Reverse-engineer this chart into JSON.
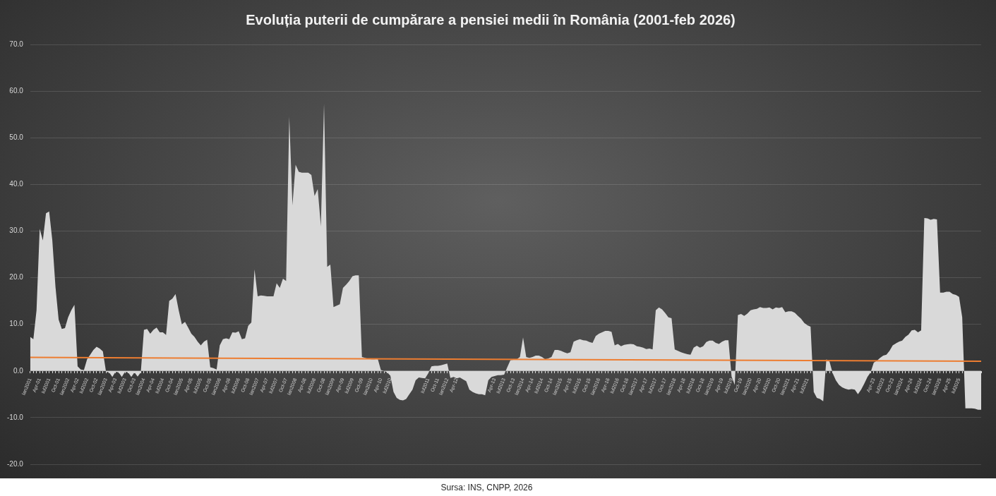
{
  "chart_data": {
    "type": "area",
    "title": "Evoluția puterii de cumpărare a pensiei medii în România (2001-feb 2026)",
    "annotations": [
      "Sursa: INS, CNPP, 2026"
    ],
    "x": [
      "2001-01",
      "2001-02",
      "2001-03",
      "2001-04",
      "2001-05",
      "2001-06",
      "2001-07",
      "2001-08",
      "2001-09",
      "2001-10",
      "2001-11",
      "2001-12",
      "2002-01",
      "2002-02",
      "2002-03",
      "2002-04",
      "2002-05",
      "2002-06",
      "2002-07",
      "2002-08",
      "2002-09",
      "2002-10",
      "2002-11",
      "2002-12",
      "2003-01",
      "2003-02",
      "2003-03",
      "2003-04",
      "2003-05",
      "2003-06",
      "2003-07",
      "2003-08",
      "2003-09",
      "2003-10",
      "2003-11",
      "2003-12",
      "2004-01",
      "2004-02",
      "2004-03",
      "2004-04",
      "2004-05",
      "2004-06",
      "2004-07",
      "2004-08",
      "2004-09",
      "2004-10",
      "2004-11",
      "2004-12",
      "2005-01",
      "2005-02",
      "2005-03",
      "2005-04",
      "2005-05",
      "2005-06",
      "2005-07",
      "2005-08",
      "2005-09",
      "2005-10",
      "2005-11",
      "2005-12",
      "2006-01",
      "2006-02",
      "2006-03",
      "2006-04",
      "2006-05",
      "2006-06",
      "2006-07",
      "2006-08",
      "2006-09",
      "2006-10",
      "2006-11",
      "2006-12",
      "2007-01",
      "2007-02",
      "2007-03",
      "2007-04",
      "2007-05",
      "2007-06",
      "2007-07",
      "2007-08",
      "2007-09",
      "2007-10",
      "2007-11",
      "2007-12",
      "2008-01",
      "2008-02",
      "2008-03",
      "2008-04",
      "2008-05",
      "2008-06",
      "2008-07",
      "2008-08",
      "2008-09",
      "2008-10",
      "2008-11",
      "2008-12",
      "2009-01",
      "2009-02",
      "2009-03",
      "2009-04",
      "2009-05",
      "2009-06",
      "2009-07",
      "2009-08",
      "2009-09",
      "2009-10",
      "2009-11",
      "2009-12",
      "2010-01",
      "2010-02",
      "2010-03",
      "2010-04",
      "2010-05",
      "2010-06",
      "2010-07",
      "2010-08",
      "2010-09",
      "2010-10",
      "2010-11",
      "2010-12",
      "2011-01",
      "2011-02",
      "2011-03",
      "2011-04",
      "2011-05",
      "2011-06",
      "2011-07",
      "2011-08",
      "2011-09",
      "2011-10",
      "2011-11",
      "2011-12",
      "2012-01",
      "2012-02",
      "2012-03",
      "2012-04",
      "2012-05",
      "2012-06",
      "2012-07",
      "2012-08",
      "2012-09",
      "2012-10",
      "2012-11",
      "2012-12",
      "2013-01",
      "2013-02",
      "2013-03",
      "2013-04",
      "2013-05",
      "2013-06",
      "2013-07",
      "2013-08",
      "2013-09",
      "2013-10",
      "2013-11",
      "2013-12",
      "2014-01",
      "2014-02",
      "2014-03",
      "2014-04",
      "2014-05",
      "2014-06",
      "2014-07",
      "2014-08",
      "2014-09",
      "2014-10",
      "2014-11",
      "2014-12",
      "2015-01",
      "2015-02",
      "2015-03",
      "2015-04",
      "2015-05",
      "2015-06",
      "2015-07",
      "2015-08",
      "2015-09",
      "2015-10",
      "2015-11",
      "2015-12",
      "2016-01",
      "2016-02",
      "2016-03",
      "2016-04",
      "2016-05",
      "2016-06",
      "2016-07",
      "2016-08",
      "2016-09",
      "2016-10",
      "2016-11",
      "2016-12",
      "2017-01",
      "2017-02",
      "2017-03",
      "2017-04",
      "2017-05",
      "2017-06",
      "2017-07",
      "2017-08",
      "2017-09",
      "2017-10",
      "2017-11",
      "2017-12",
      "2018-01",
      "2018-02",
      "2018-03",
      "2018-04",
      "2018-05",
      "2018-06",
      "2018-07",
      "2018-08",
      "2018-09",
      "2018-10",
      "2018-11",
      "2018-12",
      "2019-01",
      "2019-02",
      "2019-03",
      "2019-04",
      "2019-05",
      "2019-06",
      "2019-07",
      "2019-08",
      "2019-09",
      "2019-10",
      "2019-11",
      "2019-12",
      "2020-01",
      "2020-02",
      "2020-03",
      "2020-04",
      "2020-05",
      "2020-06",
      "2020-07",
      "2020-08",
      "2020-09",
      "2020-10",
      "2020-11",
      "2020-12",
      "2021-01",
      "2021-02",
      "2021-03",
      "2021-04",
      "2021-05",
      "2021-06",
      "2021-07",
      "2021-08",
      "2021-09",
      "2021-10",
      "2021-11",
      "2021-12",
      "2022-01",
      "2022-02",
      "2022-03",
      "2022-04",
      "2022-05",
      "2022-06",
      "2022-07",
      "2022-08",
      "2022-09",
      "2022-10",
      "2022-11",
      "2022-12",
      "2023-01",
      "2023-02",
      "2023-03",
      "2023-04",
      "2023-05",
      "2023-06",
      "2023-07",
      "2023-08",
      "2023-09",
      "2023-10",
      "2023-11",
      "2023-12",
      "2024-01",
      "2024-02",
      "2024-03",
      "2024-04",
      "2024-05",
      "2024-06",
      "2024-07",
      "2024-08",
      "2024-09",
      "2024-10",
      "2024-11",
      "2024-12",
      "2025-01",
      "2025-02",
      "2025-03",
      "2025-04",
      "2025-05",
      "2025-06",
      "2025-07",
      "2025-08",
      "2025-09",
      "2025-10",
      "2025-11",
      "2025-12",
      "2026-01",
      "2026-02"
    ],
    "series": [
      {
        "color": "#d9d9d9",
        "values": [
          7.3,
          6.8,
          13.0,
          30.5,
          28.0,
          33.8,
          34.2,
          28.0,
          18.0,
          11.0,
          9.0,
          9.2,
          11.5,
          13.0,
          14.2,
          1.0,
          0.3,
          0.2,
          2.5,
          3.5,
          4.5,
          5.2,
          4.8,
          4.2,
          -0.2,
          -0.3,
          -1.3,
          -0.2,
          -0.3,
          -1.3,
          -0.2,
          -0.3,
          -1.3,
          -0.3,
          -1.2,
          -0.3,
          8.8,
          9.0,
          8.0,
          8.8,
          9.3,
          8.3,
          8.3,
          7.7,
          15.0,
          15.5,
          16.5,
          13.0,
          10.0,
          10.5,
          9.3,
          8.0,
          7.3,
          6.3,
          5.5,
          6.3,
          6.7,
          0.8,
          0.6,
          0.3,
          5.5,
          6.8,
          7.0,
          6.8,
          8.3,
          8.2,
          8.5,
          6.8,
          7.0,
          9.7,
          10.4,
          21.8,
          16.0,
          16.2,
          16.1,
          16.0,
          16.0,
          16.0,
          18.8,
          17.8,
          19.8,
          19.3,
          54.5,
          35.5,
          44.2,
          42.7,
          42.5,
          42.5,
          42.5,
          42.0,
          37.5,
          39.0,
          31.0,
          57.3,
          22.3,
          22.8,
          13.7,
          14.0,
          14.3,
          17.8,
          18.5,
          19.3,
          20.3,
          20.5,
          20.5,
          3.0,
          2.8,
          2.6,
          2.5,
          2.5,
          2.6,
          0.2,
          0.0,
          -0.3,
          -1.0,
          -4.5,
          -5.8,
          -6.2,
          -6.3,
          -6.0,
          -5.0,
          -4.0,
          -2.0,
          -1.4,
          -1.5,
          -1.6,
          -0.5,
          1.0,
          1.1,
          1.1,
          1.2,
          1.4,
          1.6,
          -1.5,
          -1.3,
          -1.6,
          -1.4,
          -1.8,
          -2.2,
          -4.0,
          -4.5,
          -4.8,
          -5.0,
          -5.0,
          -5.2,
          -2.0,
          -1.3,
          -1.1,
          -0.9,
          -0.9,
          -0.8,
          0.8,
          2.3,
          2.4,
          2.5,
          3.0,
          7.2,
          3.0,
          2.8,
          3.0,
          3.3,
          3.3,
          3.0,
          2.5,
          2.7,
          3.0,
          4.5,
          4.5,
          4.3,
          4.0,
          3.8,
          4.0,
          6.3,
          6.6,
          6.8,
          6.6,
          6.5,
          6.2,
          6.0,
          7.5,
          8.0,
          8.3,
          8.6,
          8.6,
          8.4,
          5.5,
          5.8,
          5.3,
          5.6,
          5.7,
          5.8,
          5.7,
          5.3,
          5.2,
          5.0,
          4.7,
          4.8,
          4.6,
          13.0,
          13.6,
          13.2,
          12.4,
          11.5,
          11.3,
          4.6,
          4.3,
          4.0,
          3.8,
          3.6,
          3.5,
          5.0,
          5.4,
          5.0,
          5.3,
          6.2,
          6.5,
          6.5,
          6.0,
          5.8,
          6.3,
          6.6,
          6.6,
          -1.2,
          -3.0,
          12.0,
          12.2,
          11.8,
          12.3,
          13.0,
          13.2,
          13.3,
          13.7,
          13.5,
          13.5,
          13.6,
          13.2,
          13.6,
          13.5,
          13.7,
          12.6,
          12.8,
          12.8,
          12.5,
          11.8,
          11.2,
          10.3,
          9.8,
          9.5,
          -4.5,
          -5.8,
          -6.0,
          -6.5,
          2.5,
          2.0,
          -0.5,
          -2.0,
          -3.0,
          -3.5,
          -3.8,
          -4.0,
          -3.9,
          -4.0,
          -5.0,
          -4.0,
          -2.7,
          -1.3,
          -0.3,
          1.8,
          2.2,
          2.8,
          3.3,
          3.5,
          4.3,
          5.5,
          5.9,
          6.3,
          6.5,
          7.3,
          7.8,
          8.7,
          8.8,
          8.3,
          8.7,
          32.8,
          32.7,
          32.4,
          32.6,
          32.5,
          16.8,
          16.8,
          17.0,
          17.0,
          16.5,
          16.3,
          15.9,
          11.5,
          -8.0,
          -8.0,
          -8.0,
          -8.1,
          -8.3,
          -8.3
        ]
      },
      {
        "type": "line",
        "color": "#ed7d31",
        "x": [
          "2001-01",
          "2026-02"
        ],
        "values": [
          2.9,
          2.1
        ]
      }
    ],
    "xlim": [
      "2001-01",
      "2026-02"
    ],
    "xticks": [
      {
        "value": "2001-01",
        "label": "Ian2001"
      },
      {
        "value": "2001-02",
        "label": null
      },
      {
        "value": "2001-03",
        "label": null
      },
      {
        "value": "2001-04",
        "label": "Apr-01"
      },
      {
        "value": "2001-05",
        "label": null
      },
      {
        "value": "2001-06",
        "label": null
      },
      {
        "value": "2001-07",
        "label": "Iul2001"
      },
      {
        "value": "2001-08",
        "label": null
      },
      {
        "value": "2001-09",
        "label": null
      },
      {
        "value": "2001-10",
        "label": "Oct-01"
      },
      {
        "value": "2001-11",
        "label": null
      },
      {
        "value": "2001-12",
        "label": null
      },
      {
        "value": "2002-01",
        "label": "Ian2002"
      },
      {
        "value": "2002-02",
        "label": null
      },
      {
        "value": "2002-03",
        "label": null
      },
      {
        "value": "2002-04",
        "label": "Apr-02"
      },
      {
        "value": "2002-05",
        "label": null
      },
      {
        "value": "2002-06",
        "label": null
      },
      {
        "value": "2002-07",
        "label": "Iul2002"
      },
      {
        "value": "2002-08",
        "label": null
      },
      {
        "value": "2002-09",
        "label": null
      },
      {
        "value": "2002-10",
        "label": "Oct-02"
      },
      {
        "value": "2002-11",
        "label": null
      },
      {
        "value": "2002-12",
        "label": null
      },
      {
        "value": "2003-01",
        "label": "Ian2003"
      },
      {
        "value": "2003-02",
        "label": null
      },
      {
        "value": "2003-03",
        "label": null
      },
      {
        "value": "2003-04",
        "label": "Apr-03"
      },
      {
        "value": "2003-05",
        "label": null
      },
      {
        "value": "2003-06",
        "label": null
      },
      {
        "value": "2003-07",
        "label": "Iul2003"
      },
      {
        "value": "2003-08",
        "label": null
      },
      {
        "value": "2003-09",
        "label": null
      },
      {
        "value": "2003-10",
        "label": "Oct-03"
      },
      {
        "value": "2003-11",
        "label": null
      },
      {
        "value": "2003-12",
        "label": null
      },
      {
        "value": "2004-01",
        "label": "Ian2004"
      },
      {
        "value": "2004-02",
        "label": null
      },
      {
        "value": "2004-03",
        "label": null
      },
      {
        "value": "2004-04",
        "label": "Apr-04"
      },
      {
        "value": "2004-05",
        "label": null
      },
      {
        "value": "2004-06",
        "label": null
      },
      {
        "value": "2004-07",
        "label": "Iul2004"
      },
      {
        "value": "2004-08",
        "label": null
      },
      {
        "value": "2004-09",
        "label": null
      },
      {
        "value": "2004-10",
        "label": "Oct-04"
      },
      {
        "value": "2004-11",
        "label": null
      },
      {
        "value": "2004-12",
        "label": null
      },
      {
        "value": "2005-01",
        "label": "Ian2005"
      },
      {
        "value": "2005-02",
        "label": null
      },
      {
        "value": "2005-03",
        "label": null
      },
      {
        "value": "2005-04",
        "label": "Apr-05"
      },
      {
        "value": "2005-05",
        "label": null
      },
      {
        "value": "2005-06",
        "label": null
      },
      {
        "value": "2005-07",
        "label": "Iul2005"
      },
      {
        "value": "2005-08",
        "label": null
      },
      {
        "value": "2005-09",
        "label": null
      },
      {
        "value": "2005-10",
        "label": "Oct-05"
      },
      {
        "value": "2005-11",
        "label": null
      },
      {
        "value": "2005-12",
        "label": null
      },
      {
        "value": "2006-01",
        "label": "Ian2006"
      },
      {
        "value": "2006-02",
        "label": null
      },
      {
        "value": "2006-03",
        "label": null
      },
      {
        "value": "2006-04",
        "label": "Apr-06"
      },
      {
        "value": "2006-05",
        "label": null
      },
      {
        "value": "2006-06",
        "label": null
      },
      {
        "value": "2006-07",
        "label": "Iul2006"
      },
      {
        "value": "2006-08",
        "label": null
      },
      {
        "value": "2006-09",
        "label": null
      },
      {
        "value": "2006-10",
        "label": "Oct-06"
      },
      {
        "value": "2006-11",
        "label": null
      },
      {
        "value": "2006-12",
        "label": null
      },
      {
        "value": "2007-01",
        "label": "Ian2007"
      },
      {
        "value": "2007-02",
        "label": null
      },
      {
        "value": "2007-03",
        "label": null
      },
      {
        "value": "2007-04",
        "label": "Apr-07"
      },
      {
        "value": "2007-05",
        "label": null
      },
      {
        "value": "2007-06",
        "label": null
      },
      {
        "value": "2007-07",
        "label": "Iul2007"
      },
      {
        "value": "2007-08",
        "label": null
      },
      {
        "value": "2007-09",
        "label": null
      },
      {
        "value": "2007-10",
        "label": "Oct-07"
      },
      {
        "value": "2007-11",
        "label": null
      },
      {
        "value": "2007-12",
        "label": null
      },
      {
        "value": "2008-01",
        "label": "Ian2008"
      },
      {
        "value": "2008-02",
        "label": null
      },
      {
        "value": "2008-03",
        "label": null
      },
      {
        "value": "2008-04",
        "label": "Apr-08"
      },
      {
        "value": "2008-05",
        "label": null
      },
      {
        "value": "2008-06",
        "label": null
      },
      {
        "value": "2008-07",
        "label": "Iul2008"
      },
      {
        "value": "2008-08",
        "label": null
      },
      {
        "value": "2008-09",
        "label": null
      },
      {
        "value": "2008-10",
        "label": "Oct-08"
      },
      {
        "value": "2008-11",
        "label": null
      },
      {
        "value": "2008-12",
        "label": null
      },
      {
        "value": "2009-01",
        "label": "Ian2009"
      },
      {
        "value": "2009-02",
        "label": null
      },
      {
        "value": "2009-03",
        "label": null
      },
      {
        "value": "2009-04",
        "label": "Apr-09"
      },
      {
        "value": "2009-05",
        "label": null
      },
      {
        "value": "2009-06",
        "label": null
      },
      {
        "value": "2009-07",
        "label": "Iul2009"
      },
      {
        "value": "2009-08",
        "label": null
      },
      {
        "value": "2009-09",
        "label": null
      },
      {
        "value": "2009-10",
        "label": "Oct-09"
      },
      {
        "value": "2009-11",
        "label": null
      },
      {
        "value": "2009-12",
        "label": null
      },
      {
        "value": "2010-01",
        "label": "Ian2010"
      },
      {
        "value": "2010-02",
        "label": null
      },
      {
        "value": "2010-03",
        "label": null
      },
      {
        "value": "2010-04",
        "label": "Apr-10"
      },
      {
        "value": "2010-05",
        "label": null
      },
      {
        "value": "2010-06",
        "label": null
      },
      {
        "value": "2010-07",
        "label": "Iul2010"
      },
      {
        "value": "2010-08",
        "label": null
      },
      {
        "value": "2010-09",
        "label": null
      },
      {
        "value": "2010-10",
        "label": null
      },
      {
        "value": "2010-11",
        "label": null
      },
      {
        "value": "2010-12",
        "label": null
      },
      {
        "value": "2011-01",
        "label": null
      },
      {
        "value": "2011-02",
        "label": null
      },
      {
        "value": "2011-03",
        "label": null
      },
      {
        "value": "2011-04",
        "label": null
      },
      {
        "value": "2011-05",
        "label": null
      },
      {
        "value": "2011-06",
        "label": null
      },
      {
        "value": "2011-07",
        "label": "Iul2011"
      },
      {
        "value": "2011-08",
        "label": null
      },
      {
        "value": "2011-09",
        "label": null
      },
      {
        "value": "2011-10",
        "label": "Oct-11"
      },
      {
        "value": "2011-11",
        "label": null
      },
      {
        "value": "2011-12",
        "label": null
      },
      {
        "value": "2012-01",
        "label": "Ian2012"
      },
      {
        "value": "2012-02",
        "label": null
      },
      {
        "value": "2012-03",
        "label": null
      },
      {
        "value": "2012-04",
        "label": "Apr-12"
      },
      {
        "value": "2012-05",
        "label": null
      },
      {
        "value": "2012-06",
        "label": null
      },
      {
        "value": "2012-07",
        "label": null
      },
      {
        "value": "2012-08",
        "label": null
      },
      {
        "value": "2012-09",
        "label": null
      },
      {
        "value": "2012-10",
        "label": null
      },
      {
        "value": "2012-11",
        "label": null
      },
      {
        "value": "2012-12",
        "label": null
      },
      {
        "value": "2013-01",
        "label": null
      },
      {
        "value": "2013-02",
        "label": null
      },
      {
        "value": "2013-03",
        "label": null
      },
      {
        "value": "2013-04",
        "label": "Apr-13"
      },
      {
        "value": "2013-05",
        "label": null
      },
      {
        "value": "2013-06",
        "label": null
      },
      {
        "value": "2013-07",
        "label": "Iul2013"
      },
      {
        "value": "2013-08",
        "label": null
      },
      {
        "value": "2013-09",
        "label": null
      },
      {
        "value": "2013-10",
        "label": "Oct-13"
      },
      {
        "value": "2013-11",
        "label": null
      },
      {
        "value": "2013-12",
        "label": null
      },
      {
        "value": "2014-01",
        "label": "Ian2014"
      },
      {
        "value": "2014-02",
        "label": null
      },
      {
        "value": "2014-03",
        "label": null
      },
      {
        "value": "2014-04",
        "label": "Apr-14"
      },
      {
        "value": "2014-05",
        "label": null
      },
      {
        "value": "2014-06",
        "label": null
      },
      {
        "value": "2014-07",
        "label": "Iul2014"
      },
      {
        "value": "2014-08",
        "label": null
      },
      {
        "value": "2014-09",
        "label": null
      },
      {
        "value": "2014-10",
        "label": "Oct-14"
      },
      {
        "value": "2014-11",
        "label": null
      },
      {
        "value": "2014-12",
        "label": null
      },
      {
        "value": "2015-01",
        "label": "Ian2015"
      },
      {
        "value": "2015-02",
        "label": null
      },
      {
        "value": "2015-03",
        "label": null
      },
      {
        "value": "2015-04",
        "label": "Apr-15"
      },
      {
        "value": "2015-05",
        "label": null
      },
      {
        "value": "2015-06",
        "label": null
      },
      {
        "value": "2015-07",
        "label": "Iul2015"
      },
      {
        "value": "2015-08",
        "label": null
      },
      {
        "value": "2015-09",
        "label": null
      },
      {
        "value": "2015-10",
        "label": "Oct-15"
      },
      {
        "value": "2015-11",
        "label": null
      },
      {
        "value": "2015-12",
        "label": null
      },
      {
        "value": "2016-01",
        "label": "Ian2016"
      },
      {
        "value": "2016-02",
        "label": null
      },
      {
        "value": "2016-03",
        "label": null
      },
      {
        "value": "2016-04",
        "label": "Apr-16"
      },
      {
        "value": "2016-05",
        "label": null
      },
      {
        "value": "2016-06",
        "label": null
      },
      {
        "value": "2016-07",
        "label": "Iul2016"
      },
      {
        "value": "2016-08",
        "label": null
      },
      {
        "value": "2016-09",
        "label": null
      },
      {
        "value": "2016-10",
        "label": "Oct-16"
      },
      {
        "value": "2016-11",
        "label": null
      },
      {
        "value": "2016-12",
        "label": null
      },
      {
        "value": "2017-01",
        "label": "Ian2017"
      },
      {
        "value": "2017-02",
        "label": null
      },
      {
        "value": "2017-03",
        "label": null
      },
      {
        "value": "2017-04",
        "label": "Apr-17"
      },
      {
        "value": "2017-05",
        "label": null
      },
      {
        "value": "2017-06",
        "label": null
      },
      {
        "value": "2017-07",
        "label": "Iul2017"
      },
      {
        "value": "2017-08",
        "label": null
      },
      {
        "value": "2017-09",
        "label": null
      },
      {
        "value": "2017-10",
        "label": "Oct-17"
      },
      {
        "value": "2017-11",
        "label": null
      },
      {
        "value": "2017-12",
        "label": null
      },
      {
        "value": "2018-01",
        "label": "Ian2018"
      },
      {
        "value": "2018-02",
        "label": null
      },
      {
        "value": "2018-03",
        "label": null
      },
      {
        "value": "2018-04",
        "label": "Apr-18"
      },
      {
        "value": "2018-05",
        "label": null
      },
      {
        "value": "2018-06",
        "label": null
      },
      {
        "value": "2018-07",
        "label": "Iul2018"
      },
      {
        "value": "2018-08",
        "label": null
      },
      {
        "value": "2018-09",
        "label": null
      },
      {
        "value": "2018-10",
        "label": "Oct-18"
      },
      {
        "value": "2018-11",
        "label": null
      },
      {
        "value": "2018-12",
        "label": null
      },
      {
        "value": "2019-01",
        "label": "Ian2019"
      },
      {
        "value": "2019-02",
        "label": null
      },
      {
        "value": "2019-03",
        "label": null
      },
      {
        "value": "2019-04",
        "label": "Apr-19"
      },
      {
        "value": "2019-05",
        "label": null
      },
      {
        "value": "2019-06",
        "label": null
      },
      {
        "value": "2019-07",
        "label": "Iul2019"
      },
      {
        "value": "2019-08",
        "label": null
      },
      {
        "value": "2019-09",
        "label": null
      },
      {
        "value": "2019-10",
        "label": "Oct-19"
      },
      {
        "value": "2019-11",
        "label": null
      },
      {
        "value": "2019-12",
        "label": null
      },
      {
        "value": "2020-01",
        "label": "Ian2020"
      },
      {
        "value": "2020-02",
        "label": null
      },
      {
        "value": "2020-03",
        "label": null
      },
      {
        "value": "2020-04",
        "label": "Apr-20"
      },
      {
        "value": "2020-05",
        "label": null
      },
      {
        "value": "2020-06",
        "label": null
      },
      {
        "value": "2020-07",
        "label": "Iul2020"
      },
      {
        "value": "2020-08",
        "label": null
      },
      {
        "value": "2020-09",
        "label": null
      },
      {
        "value": "2020-10",
        "label": "Oct-20"
      },
      {
        "value": "2020-11",
        "label": null
      },
      {
        "value": "2020-12",
        "label": null
      },
      {
        "value": "2021-01",
        "label": "Ian2021"
      },
      {
        "value": "2021-02",
        "label": null
      },
      {
        "value": "2021-03",
        "label": null
      },
      {
        "value": "2021-04",
        "label": "Apr-21"
      },
      {
        "value": "2021-05",
        "label": null
      },
      {
        "value": "2021-06",
        "label": null
      },
      {
        "value": "2021-07",
        "label": "Iul2021"
      },
      {
        "value": "2021-08",
        "label": null
      },
      {
        "value": "2021-09",
        "label": null
      },
      {
        "value": "2021-10",
        "label": null
      },
      {
        "value": "2021-11",
        "label": null
      },
      {
        "value": "2021-12",
        "label": null
      },
      {
        "value": "2022-01",
        "label": null
      },
      {
        "value": "2022-02",
        "label": null
      },
      {
        "value": "2022-03",
        "label": null
      },
      {
        "value": "2022-04",
        "label": null
      },
      {
        "value": "2022-05",
        "label": null
      },
      {
        "value": "2022-06",
        "label": null
      },
      {
        "value": "2022-07",
        "label": null
      },
      {
        "value": "2022-08",
        "label": null
      },
      {
        "value": "2022-09",
        "label": null
      },
      {
        "value": "2022-10",
        "label": null
      },
      {
        "value": "2022-11",
        "label": null
      },
      {
        "value": "2022-12",
        "label": null
      },
      {
        "value": "2023-01",
        "label": null
      },
      {
        "value": "2023-02",
        "label": null
      },
      {
        "value": "2023-03",
        "label": null
      },
      {
        "value": "2023-04",
        "label": "Apr-23"
      },
      {
        "value": "2023-05",
        "label": null
      },
      {
        "value": "2023-06",
        "label": null
      },
      {
        "value": "2023-07",
        "label": "Iul2023"
      },
      {
        "value": "2023-08",
        "label": null
      },
      {
        "value": "2023-09",
        "label": null
      },
      {
        "value": "2023-10",
        "label": "Oct-23"
      },
      {
        "value": "2023-11",
        "label": null
      },
      {
        "value": "2023-12",
        "label": null
      },
      {
        "value": "2024-01",
        "label": "Ian2024"
      },
      {
        "value": "2024-02",
        "label": null
      },
      {
        "value": "2024-03",
        "label": null
      },
      {
        "value": "2024-04",
        "label": "Apr-24"
      },
      {
        "value": "2024-05",
        "label": null
      },
      {
        "value": "2024-06",
        "label": null
      },
      {
        "value": "2024-07",
        "label": "Iul2024"
      },
      {
        "value": "2024-08",
        "label": null
      },
      {
        "value": "2024-09",
        "label": null
      },
      {
        "value": "2024-10",
        "label": "Oct-24"
      },
      {
        "value": "2024-11",
        "label": null
      },
      {
        "value": "2024-12",
        "label": null
      },
      {
        "value": "2025-01",
        "label": "Ian2025"
      },
      {
        "value": "2025-02",
        "label": null
      },
      {
        "value": "2025-03",
        "label": null
      },
      {
        "value": "2025-04",
        "label": "Apr-25"
      },
      {
        "value": "2025-05",
        "label": null
      },
      {
        "value": "2025-06",
        "label": null
      },
      {
        "value": "2025-07",
        "label": "Iul2025"
      },
      {
        "value": "2025-08",
        "label": null
      },
      {
        "value": "2025-09",
        "label": null
      },
      {
        "value": "2025-10",
        "label": null
      },
      {
        "value": "2025-11",
        "label": null
      },
      {
        "value": "2025-12",
        "label": null
      },
      {
        "value": "2026-01",
        "label": null
      },
      {
        "value": "2026-02",
        "label": null
      }
    ],
    "ylim": [
      -20,
      70
    ],
    "yticks": [
      {
        "value": -20,
        "label": "-20.0"
      },
      {
        "value": -10,
        "label": "-10.0"
      },
      {
        "value": 0,
        "label": "0.0"
      },
      {
        "value": 10,
        "label": "10.0"
      },
      {
        "value": 20,
        "label": "20.0"
      },
      {
        "value": 30,
        "label": "30.0"
      },
      {
        "value": 40,
        "label": "40.0"
      },
      {
        "value": 50,
        "label": "50.0"
      },
      {
        "value": 60,
        "label": "60.0"
      },
      {
        "value": 70,
        "label": "70.0"
      }
    ],
    "grid": "y"
  }
}
